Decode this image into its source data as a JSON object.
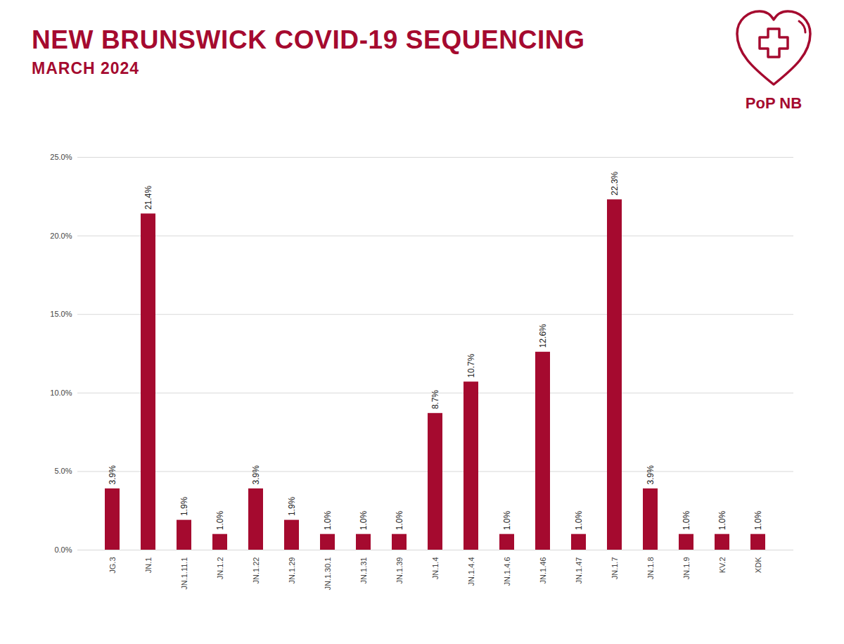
{
  "chart_data": {
    "type": "bar",
    "title": "NEW BRUNSWICK COVID-19 SEQUENCING",
    "subtitle": "MARCH 2024",
    "annotations": [
      "PoP NB"
    ],
    "categories": [
      "JG.3",
      "JN.1",
      "JN.1.11.1",
      "JN.1.2",
      "JN.1.22",
      "JN.1.29",
      "JN.1.30.1",
      "JN.1.31",
      "JN.1.39",
      "JN.1.4",
      "JN.1.4.4",
      "JN.1.4.6",
      "JN.1.46",
      "JN.1.47",
      "JN.1.7",
      "JN.1.8",
      "JN.1.9",
      "KV.2",
      "XDK"
    ],
    "values": [
      3.9,
      21.4,
      1.9,
      1.0,
      3.9,
      1.9,
      1.0,
      1.0,
      1.0,
      8.7,
      10.7,
      1.0,
      12.6,
      1.0,
      22.3,
      3.9,
      1.0,
      1.0,
      1.0
    ],
    "value_labels": [
      "3.9%",
      "21.4%",
      "1.9%",
      "1.0%",
      "3.9%",
      "1.9%",
      "1.0%",
      "1.0%",
      "1.0%",
      "8.7%",
      "10.7%",
      "1.0%",
      "12.6%",
      "1.0%",
      "22.3%",
      "3.9%",
      "1.0%",
      "1.0%",
      "1.0%"
    ],
    "color": "#a50a2f",
    "ylim": [
      0,
      25
    ],
    "yticks": [
      {
        "value": 0,
        "label": "0.0%"
      },
      {
        "value": 5,
        "label": "5.0%"
      },
      {
        "value": 10,
        "label": "10.0%"
      },
      {
        "value": 15,
        "label": "15.0%"
      },
      {
        "value": 20,
        "label": "20.0%"
      },
      {
        "value": 25,
        "label": "25.0%"
      }
    ],
    "grid": true,
    "data_labels": true
  }
}
